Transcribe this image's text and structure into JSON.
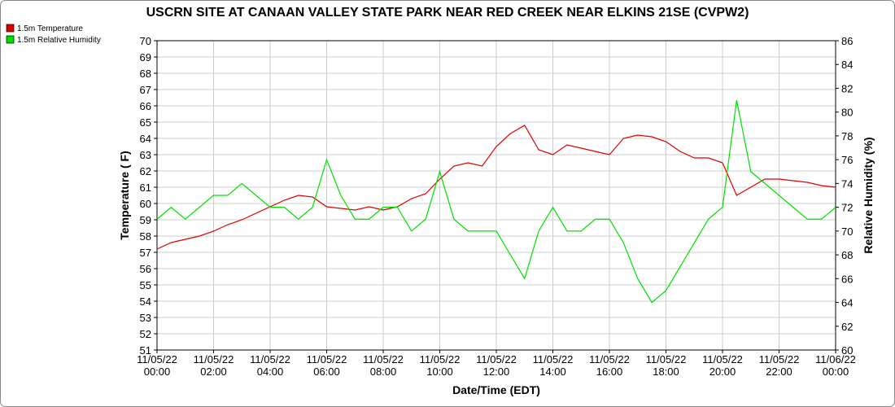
{
  "chart_data": {
    "type": "line",
    "title": "USCRN SITE AT CANAAN VALLEY STATE PARK NEAR RED CREEK NEAR ELKINS 21SE (CVPW2)",
    "xlabel": "Date/Time (EDT)",
    "ylabel": "Temperature ( F)",
    "y2label": "Relative Humidity (%)",
    "x": [
      0,
      0.5,
      1,
      1.5,
      2,
      2.5,
      3,
      3.5,
      4,
      4.5,
      5,
      5.5,
      6,
      6.5,
      7,
      7.5,
      8,
      8.5,
      9,
      9.5,
      10,
      10.5,
      11,
      11.5,
      12,
      12.5,
      13,
      13.5,
      14,
      14.5,
      15,
      15.5,
      16,
      16.5,
      17,
      17.5,
      18,
      18.5,
      19,
      19.5,
      20,
      20.5,
      21,
      21.5,
      22,
      22.5,
      23,
      23.5,
      24
    ],
    "series": [
      {
        "name": "1.5m Temperature",
        "color": "#e00000",
        "axis": "y",
        "values": [
          57.2,
          57.6,
          57.8,
          58.0,
          58.3,
          58.7,
          59.0,
          59.4,
          59.8,
          60.2,
          60.5,
          60.4,
          59.8,
          59.7,
          59.6,
          59.8,
          59.6,
          59.8,
          60.3,
          60.6,
          61.5,
          62.3,
          62.5,
          62.3,
          63.5,
          64.3,
          64.8,
          63.3,
          63.0,
          63.6,
          63.4,
          63.2,
          63.0,
          64.0,
          64.2,
          64.1,
          63.8,
          63.2,
          62.8,
          62.8,
          62.5,
          60.5,
          61.0,
          61.5,
          61.5,
          61.4,
          61.3,
          61.1,
          61.0
        ]
      },
      {
        "name": "1.5m Relative Humidity",
        "color": "#00e000",
        "axis": "y2",
        "values": [
          71,
          72,
          71,
          72,
          73,
          73,
          74,
          73,
          72,
          72,
          71,
          72,
          76,
          73,
          71,
          71,
          72,
          72,
          70,
          71,
          75,
          71,
          70,
          70,
          70,
          68,
          66,
          70,
          72,
          70,
          70,
          71,
          71,
          69,
          66,
          64,
          65,
          67,
          69,
          71,
          72,
          81,
          75,
          74,
          73,
          72,
          71,
          71,
          72
        ]
      }
    ],
    "xlim": [
      0,
      24
    ],
    "xticks": [
      {
        "value": 0,
        "label": "11/05/22 00:00"
      },
      {
        "value": 2,
        "label": "11/05/22 02:00"
      },
      {
        "value": 4,
        "label": "11/05/22 04:00"
      },
      {
        "value": 6,
        "label": "11/05/22 06:00"
      },
      {
        "value": 8,
        "label": "11/05/22 08:00"
      },
      {
        "value": 10,
        "label": "11/05/22 10:00"
      },
      {
        "value": 12,
        "label": "11/05/22 12:00"
      },
      {
        "value": 14,
        "label": "11/05/22 14:00"
      },
      {
        "value": 16,
        "label": "11/05/22 16:00"
      },
      {
        "value": 18,
        "label": "11/05/22 18:00"
      },
      {
        "value": 20,
        "label": "11/05/22 20:00"
      },
      {
        "value": 22,
        "label": "11/05/22 22:00"
      },
      {
        "value": 24,
        "label": "11/06/22 00:00"
      }
    ],
    "ylim": [
      51,
      70
    ],
    "yticks": [
      51,
      52,
      53,
      54,
      55,
      56,
      57,
      58,
      59,
      60,
      61,
      62,
      63,
      64,
      65,
      66,
      67,
      68,
      69,
      70
    ],
    "y2lim": [
      60,
      86
    ],
    "y2ticks": [
      60,
      62,
      64,
      66,
      68,
      70,
      72,
      74,
      76,
      78,
      80,
      82,
      84,
      86
    ],
    "grid": true,
    "legend": "top-left"
  }
}
